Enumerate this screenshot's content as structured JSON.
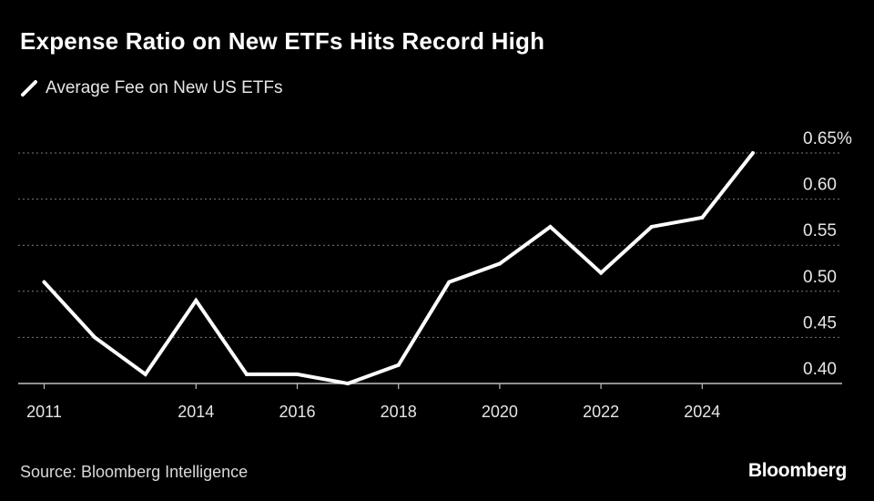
{
  "chart_data": {
    "type": "line",
    "title": "Expense Ratio on New ETFs Hits Record High",
    "series": [
      {
        "name": "Average Fee on New US ETFs",
        "color": "#ffffff",
        "x": [
          2011,
          2012,
          2013,
          2014,
          2015,
          2016,
          2017,
          2018,
          2019,
          2020,
          2021,
          2022,
          2023,
          2024,
          2025
        ],
        "values": [
          0.51,
          0.45,
          0.41,
          0.49,
          0.41,
          0.41,
          0.4,
          0.42,
          0.51,
          0.53,
          0.57,
          0.52,
          0.57,
          0.58,
          0.65
        ]
      }
    ],
    "x_ticks": [
      "2011",
      "2014",
      "2016",
      "2018",
      "2020",
      "2022",
      "2024"
    ],
    "y_ticks": [
      "0.40",
      "0.45",
      "0.50",
      "0.55",
      "0.60",
      "0.65%"
    ],
    "xlim": [
      2011,
      2026.5
    ],
    "ylim": [
      0.4,
      0.65
    ],
    "xlabel": "",
    "ylabel": "",
    "grid": true,
    "legend_position": "top-left"
  },
  "source": "Source: Bloomberg Intelligence",
  "brand": "Bloomberg"
}
